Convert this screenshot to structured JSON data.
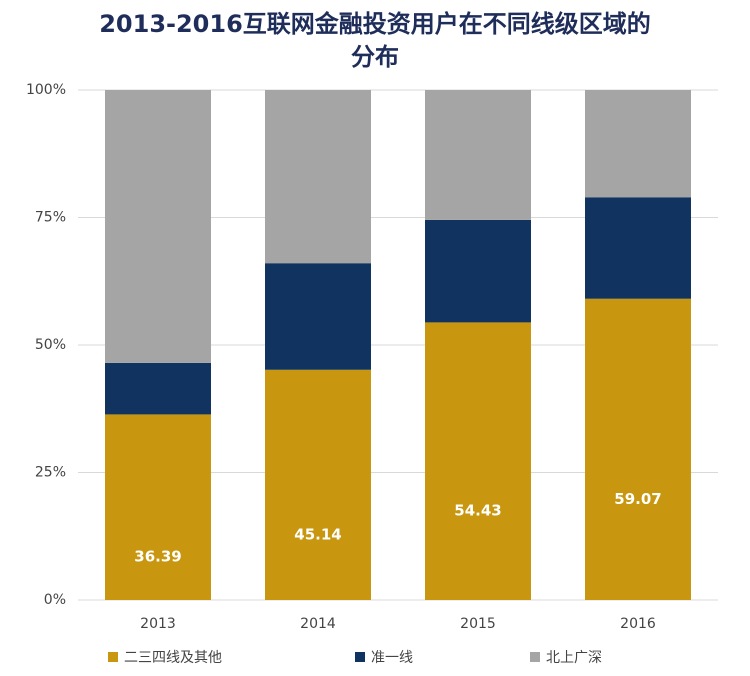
{
  "chart_data": {
    "type": "stacked-bar",
    "title": "2013-2016互联网金融投资用户在不同线级区域的分布",
    "categories": [
      "2013",
      "2014",
      "2015",
      "2016"
    ],
    "series": [
      {
        "name": "二三四线及其他",
        "color": "#c8960f",
        "values": [
          36.39,
          45.14,
          54.43,
          59.07
        ],
        "show_labels": true
      },
      {
        "name": "准一线",
        "color": "#10335f",
        "values": [
          10.1,
          20.9,
          20.1,
          19.9
        ]
      },
      {
        "name": "北上广深",
        "color": "#a5a5a5",
        "values": [
          53.51,
          33.96,
          25.47,
          21.03
        ]
      }
    ],
    "ylim": [
      0,
      100
    ],
    "yticks": [
      {
        "value": 0,
        "label": "0%"
      },
      {
        "value": 25,
        "label": "25%"
      },
      {
        "value": 50,
        "label": "50%"
      },
      {
        "value": 75,
        "label": "75%"
      },
      {
        "value": 100,
        "label": "100%"
      }
    ],
    "grid": true,
    "legend": "bottom"
  }
}
